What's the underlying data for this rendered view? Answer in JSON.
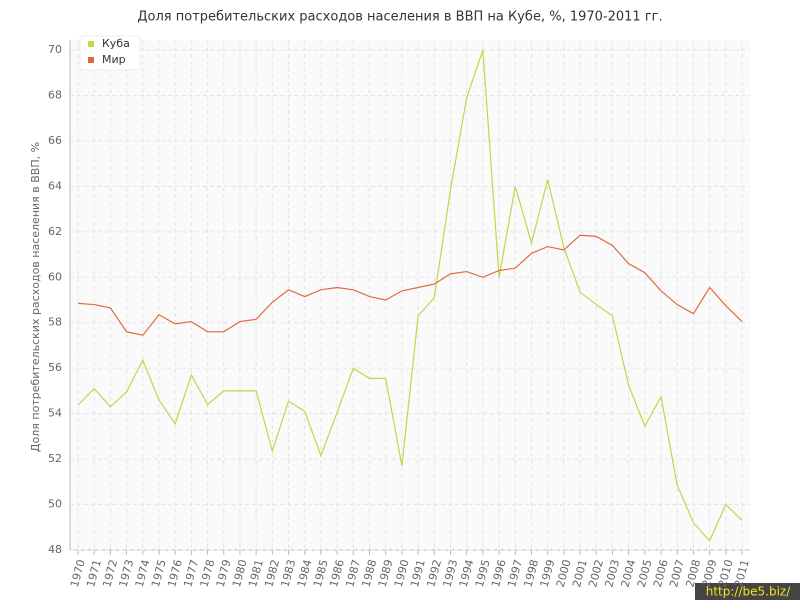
{
  "chart_data": {
    "type": "line",
    "title": "Доля потребительских расходов населения в ВВП на Кубе, %, 1970-2011 гг.",
    "y_label": "Доля потребительских расходов населения в ВВП, %",
    "categories": [
      "1970",
      "1971",
      "1972",
      "1973",
      "1974",
      "1975",
      "1976",
      "1977",
      "1978",
      "1979",
      "1980",
      "1981",
      "1982",
      "1983",
      "1984",
      "1985",
      "1986",
      "1987",
      "1988",
      "1989",
      "1990",
      "1991",
      "1992",
      "1993",
      "1994",
      "1995",
      "1996",
      "1997",
      "1998",
      "1999",
      "2000",
      "2001",
      "2002",
      "2003",
      "2004",
      "2005",
      "2006",
      "2007",
      "2008",
      "2009",
      "2010",
      "2011"
    ],
    "series": [
      {
        "name": "Куба",
        "color": "#bcd94a",
        "values": [
          54.38,
          55.1,
          54.3,
          54.95,
          56.35,
          54.6,
          53.55,
          55.7,
          54.4,
          55.0,
          55.0,
          55.0,
          52.35,
          54.55,
          54.1,
          52.15,
          54.05,
          56.0,
          55.55,
          55.55,
          51.7,
          58.3,
          59.1,
          63.85,
          67.9,
          70.0,
          60.0,
          64.0,
          61.5,
          64.3,
          61.3,
          59.35,
          58.8,
          58.3,
          55.25,
          53.45,
          54.75,
          50.85,
          49.2,
          48.4,
          50.0,
          49.3
        ]
      },
      {
        "name": "Мир",
        "color": "#e06a3c",
        "values": [
          58.85,
          58.8,
          58.65,
          57.6,
          57.45,
          58.35,
          57.95,
          58.05,
          57.6,
          57.6,
          58.05,
          58.15,
          58.9,
          59.45,
          59.15,
          59.45,
          59.55,
          59.45,
          59.15,
          59.0,
          59.4,
          59.55,
          59.7,
          60.15,
          60.25,
          60.0,
          60.3,
          60.4,
          61.05,
          61.35,
          61.2,
          61.85,
          61.8,
          61.4,
          60.6,
          60.2,
          59.4,
          58.8,
          58.4,
          59.55,
          58.75,
          58.05
        ]
      }
    ],
    "ylim": [
      48,
      70
    ],
    "yticks": [
      48,
      50,
      52,
      54,
      56,
      58,
      60,
      62,
      64,
      66,
      68,
      70
    ],
    "grid": true,
    "legend": "top-left",
    "watermark": "http://be5.biz/"
  }
}
